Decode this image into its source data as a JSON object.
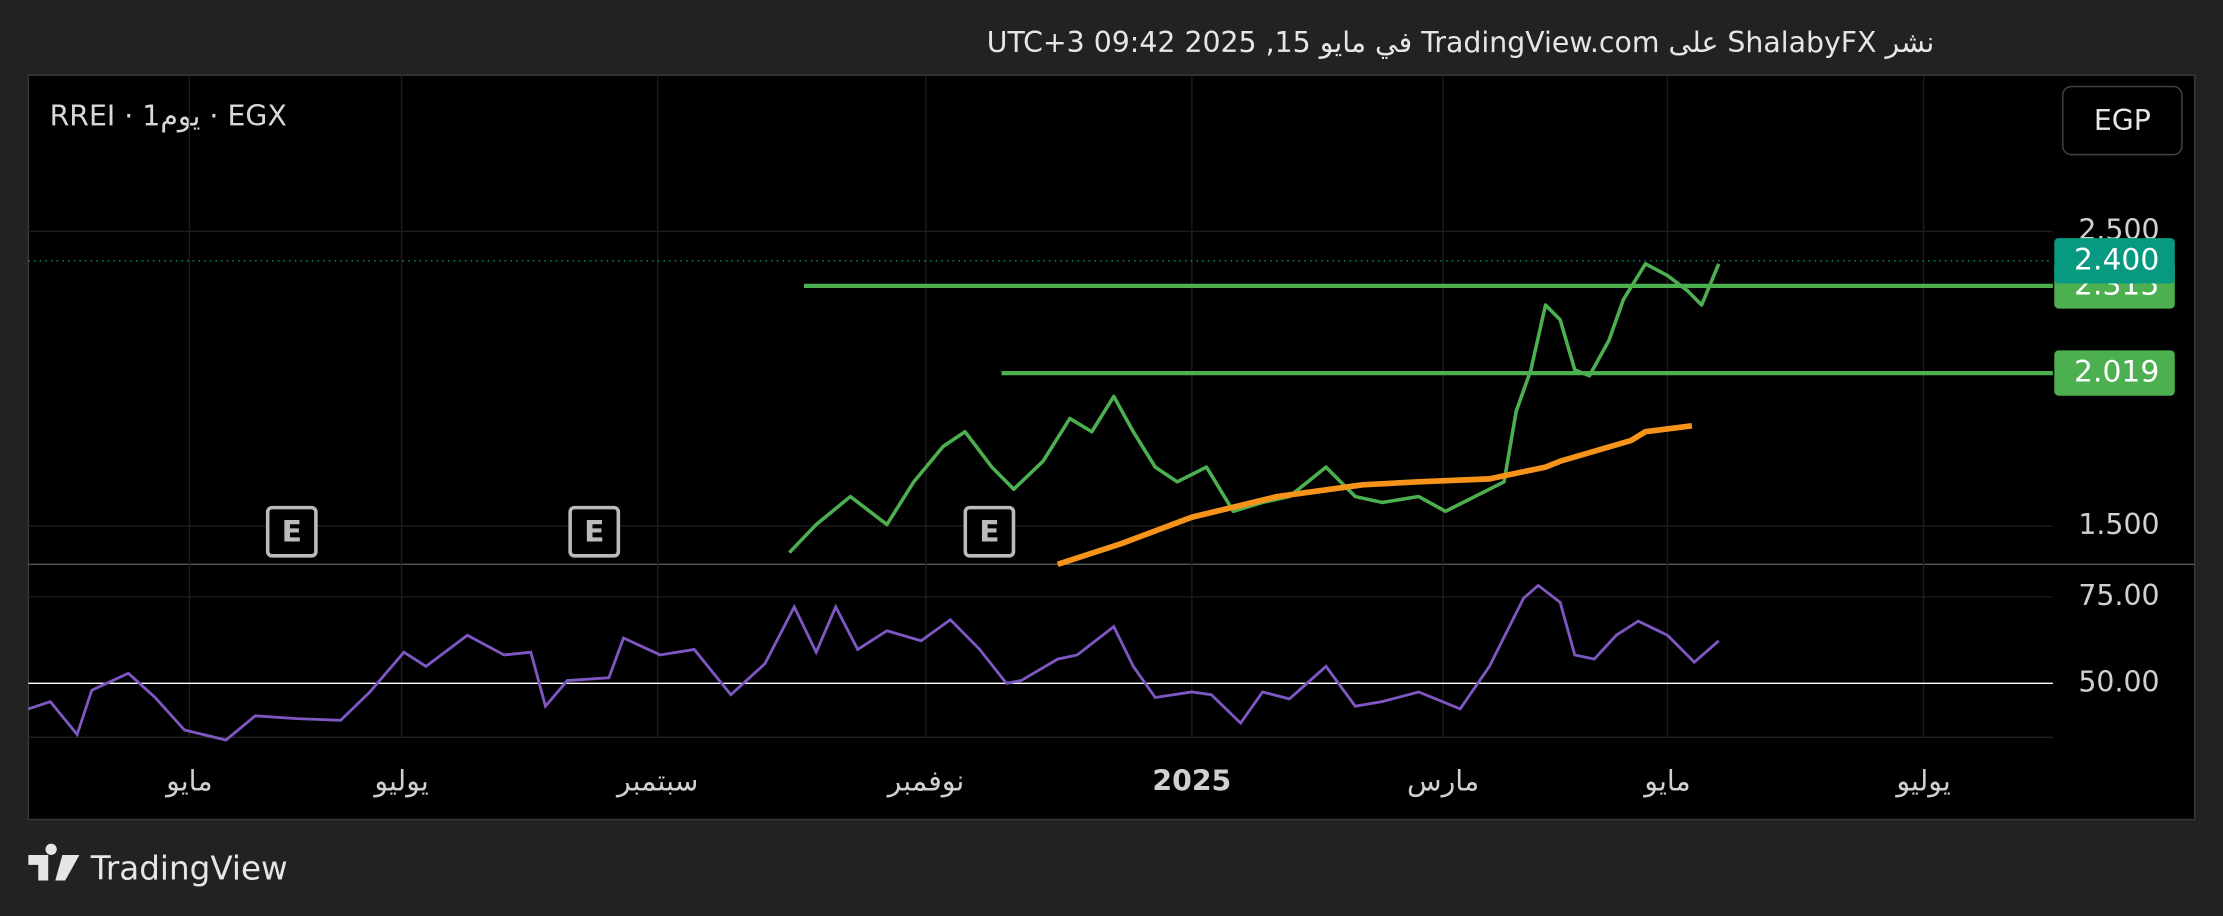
{
  "header": {
    "published": "نشر ShalabyFX على TradingView.com في مايو 15, 2025 09:42 UTC+3"
  },
  "chart_data": {
    "type": "line",
    "symbol": "RREI · 1يوم · EGX",
    "currency": "EGP",
    "xlim": [
      0,
      83
    ],
    "xticks": [
      {
        "value": 6.6,
        "label": "مايو"
      },
      {
        "value": 15.3,
        "label": "يوليو"
      },
      {
        "value": 25.8,
        "label": "سبتمبر"
      },
      {
        "value": 36.8,
        "label": "نوفمبر"
      },
      {
        "value": 47.7,
        "label": "2025"
      },
      {
        "value": 58.0,
        "label": "مارس"
      },
      {
        "value": 67.2,
        "label": "مايو"
      },
      {
        "value": 77.7,
        "label": "يوليو"
      }
    ],
    "ylim": [
      1.37,
      3.03
    ],
    "yticks": [
      {
        "value": 1.5,
        "label": "1.500"
      },
      {
        "value": 2.5,
        "label": "2.500"
      }
    ],
    "grid": true,
    "series": [
      {
        "color": "#4caf50",
        "x": [
          31.2,
          32.3,
          33.7,
          35.2,
          36.3,
          37.5,
          38.4,
          39.5,
          40.4,
          41.6,
          42.7,
          43.6,
          44.5,
          45.3,
          46.2,
          47.1,
          48.3,
          49.4,
          50.6,
          51.7,
          53.2,
          54.4,
          55.5,
          57.0,
          58.1,
          59.3,
          60.5,
          61.0,
          61.6,
          62.2,
          62.8,
          63.4,
          64.0,
          64.8,
          65.4,
          66.3,
          67.2,
          68.0,
          68.6,
          69.3
        ],
        "values": [
          1.41,
          1.505,
          1.6,
          1.505,
          1.65,
          1.77,
          1.82,
          1.7,
          1.625,
          1.72,
          1.865,
          1.82,
          1.94,
          1.82,
          1.7,
          1.65,
          1.7,
          1.55,
          1.58,
          1.6,
          1.7,
          1.6,
          1.58,
          1.6,
          1.55,
          1.6,
          1.65,
          1.89,
          2.03,
          2.25,
          2.2,
          2.03,
          2.01,
          2.13,
          2.27,
          2.39,
          2.35,
          2.3,
          2.25,
          2.39
        ]
      },
      {
        "color": "#f7931a",
        "x": [
          42.2,
          44.8,
          47.7,
          51.2,
          54.7,
          57.0,
          59.9,
          62.2,
          62.8,
          65.7,
          66.3,
          68.2
        ],
        "values": [
          1.37,
          1.44,
          1.53,
          1.6,
          1.64,
          1.65,
          1.66,
          1.7,
          1.72,
          1.79,
          1.82,
          1.84
        ]
      }
    ],
    "last_price": {
      "value": 2.4,
      "label": "2.400",
      "color": "#089981"
    },
    "levels": [
      {
        "value": 2.315,
        "start": 31.8,
        "color": "#4caf50"
      },
      {
        "value": 2.019,
        "start": 39.9,
        "color": "#4caf50"
      }
    ],
    "events": [
      {
        "x": 10.8,
        "label": "E"
      },
      {
        "x": 23.2,
        "label": "E"
      },
      {
        "x": 39.4,
        "label": "E"
      }
    ],
    "rsi": {
      "color": "#7e57c2",
      "ylim": [
        34.4,
        84.4
      ],
      "yticks": [
        {
          "value": 50,
          "label": "50.00"
        },
        {
          "value": 75,
          "label": "75.00"
        }
      ],
      "x": [
        0,
        0.9,
        2.0,
        2.6,
        4.1,
        5.2,
        6.4,
        8.1,
        9.3,
        11.0,
        12.8,
        14.0,
        15.4,
        16.3,
        18.0,
        19.5,
        20.6,
        21.2,
        22.1,
        23.8,
        24.4,
        25.9,
        27.3,
        28.8,
        30.2,
        31.4,
        32.3,
        33.1,
        34.0,
        35.2,
        36.6,
        37.8,
        39.0,
        40.1,
        40.7,
        42.2,
        43.0,
        44.5,
        45.3,
        46.2,
        47.7,
        48.5,
        49.7,
        50.6,
        51.7,
        53.2,
        54.4,
        55.5,
        57.0,
        58.7,
        59.9,
        61.3,
        61.9,
        62.8,
        63.4,
        64.2,
        65.1,
        66.0,
        67.2,
        68.3,
        69.3
      ],
      "values": [
        42.6,
        44.7,
        35.2,
        48,
        52.9,
        45.9,
        36.5,
        33.6,
        40.6,
        39.8,
        39.3,
        47.5,
        59,
        54.9,
        63.9,
        58.2,
        59,
        43.4,
        50.8,
        51.6,
        63.1,
        58.2,
        59.8,
        46.7,
        55.7,
        72.1,
        59,
        72.1,
        59.8,
        65.2,
        62.3,
        68.4,
        59.8,
        50,
        50.8,
        57,
        58.2,
        66.4,
        54.9,
        45.9,
        47.5,
        46.7,
        38.5,
        47.5,
        45.5,
        54.9,
        43.4,
        44.7,
        47.5,
        42.6,
        54.9,
        74.6,
        78.3,
        73.4,
        58.2,
        57,
        63.9,
        68,
        63.9,
        56.1,
        62.3
      ]
    }
  },
  "footer": {
    "brand": "TradingView"
  }
}
